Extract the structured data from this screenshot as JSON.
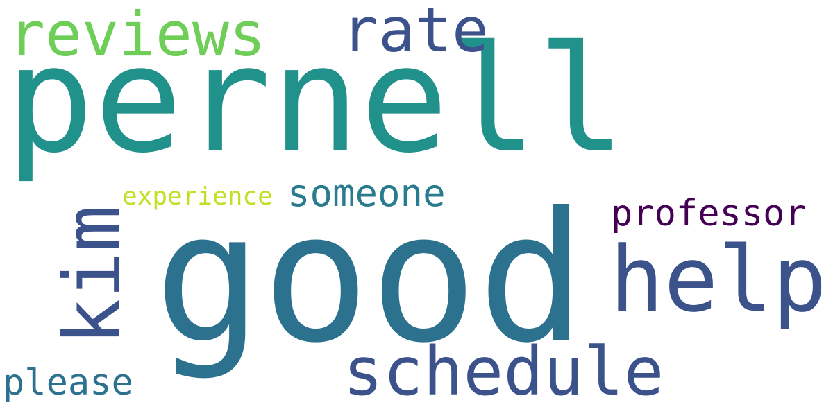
{
  "words": {
    "pernell": {
      "text": "pernell",
      "color": "#21918c"
    },
    "good": {
      "text": "good",
      "color": "#2c728e"
    },
    "reviews": {
      "text": "reviews",
      "color": "#6ece58"
    },
    "rate": {
      "text": "rate",
      "color": "#3b528b"
    },
    "help": {
      "text": "help",
      "color": "#3b528b"
    },
    "schedule": {
      "text": "schedule",
      "color": "#3b528b"
    },
    "kim": {
      "text": "kim",
      "color": "#3b528b"
    },
    "someone": {
      "text": "someone",
      "color": "#287c8e"
    },
    "professor": {
      "text": "professor",
      "color": "#440154"
    },
    "experience": {
      "text": "experience",
      "color": "#c2df23"
    },
    "please": {
      "text": "please",
      "color": "#2c728e"
    }
  }
}
